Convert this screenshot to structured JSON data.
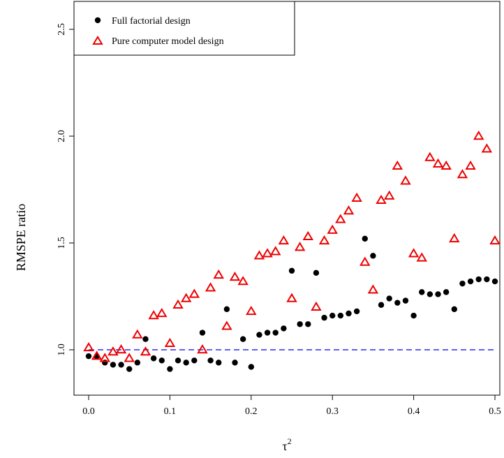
{
  "chart_data": {
    "type": "scatter",
    "xlabel_symbol": "τ",
    "xlabel_sup": "2",
    "ylabel": "RMSPE ratio",
    "xlim": [
      0.0,
      0.5
    ],
    "ylim": [
      0.8,
      2.6
    ],
    "x_ticks": [
      "0.0",
      "0.1",
      "0.2",
      "0.3",
      "0.4",
      "0.5"
    ],
    "y_ticks": [
      "1.0",
      "1.5",
      "2.0",
      "2.5"
    ],
    "reference_line": {
      "y": 1.0,
      "style": "dashed",
      "color": "#0000ee"
    },
    "legend": {
      "position": "top-left",
      "entries": [
        {
          "label": "Full factorial design",
          "marker": "filled-circle",
          "color": "#000000"
        },
        {
          "label": "Pure computer model design",
          "marker": "open-triangle",
          "color": "#ee0000"
        }
      ]
    },
    "series": [
      {
        "name": "Full factorial design",
        "marker": "filled-circle",
        "color": "#000000",
        "x": [
          0.0,
          0.01,
          0.02,
          0.03,
          0.04,
          0.05,
          0.06,
          0.07,
          0.08,
          0.09,
          0.1,
          0.11,
          0.12,
          0.13,
          0.14,
          0.15,
          0.16,
          0.17,
          0.18,
          0.19,
          0.2,
          0.21,
          0.22,
          0.23,
          0.24,
          0.25,
          0.26,
          0.27,
          0.28,
          0.29,
          0.3,
          0.31,
          0.32,
          0.33,
          0.34,
          0.35,
          0.36,
          0.37,
          0.38,
          0.39,
          0.4,
          0.41,
          0.42,
          0.43,
          0.44,
          0.45,
          0.46,
          0.47,
          0.48,
          0.49,
          0.5
        ],
        "y": [
          0.97,
          0.97,
          0.94,
          0.93,
          0.93,
          0.91,
          0.94,
          1.05,
          0.96,
          0.95,
          0.91,
          0.95,
          0.94,
          0.95,
          1.08,
          0.95,
          0.94,
          1.19,
          0.94,
          1.05,
          0.92,
          1.07,
          1.08,
          1.08,
          1.1,
          1.37,
          1.12,
          1.12,
          1.36,
          1.15,
          1.16,
          1.16,
          1.17,
          1.18,
          1.52,
          1.44,
          1.21,
          1.24,
          1.22,
          1.23,
          1.16,
          1.27,
          1.26,
          1.26,
          1.27,
          1.19,
          1.31,
          1.32,
          1.33,
          1.33,
          1.32
        ]
      },
      {
        "name": "Pure computer model design",
        "marker": "open-triangle",
        "color": "#ee0000",
        "x": [
          0.0,
          0.01,
          0.02,
          0.03,
          0.04,
          0.05,
          0.06,
          0.07,
          0.08,
          0.09,
          0.1,
          0.11,
          0.12,
          0.13,
          0.14,
          0.15,
          0.16,
          0.17,
          0.18,
          0.19,
          0.2,
          0.21,
          0.22,
          0.23,
          0.24,
          0.25,
          0.26,
          0.27,
          0.28,
          0.29,
          0.3,
          0.31,
          0.32,
          0.33,
          0.34,
          0.35,
          0.36,
          0.37,
          0.38,
          0.39,
          0.4,
          0.41,
          0.42,
          0.43,
          0.44,
          0.45,
          0.46,
          0.47,
          0.48,
          0.49,
          0.5
        ],
        "y": [
          1.01,
          0.97,
          0.96,
          0.99,
          1.0,
          0.96,
          1.07,
          0.99,
          1.16,
          1.17,
          1.03,
          1.21,
          1.24,
          1.26,
          1.0,
          1.29,
          1.35,
          1.11,
          1.34,
          1.32,
          1.18,
          1.44,
          1.45,
          1.46,
          1.51,
          1.24,
          1.48,
          1.53,
          1.2,
          1.51,
          1.56,
          1.61,
          1.65,
          1.71,
          1.41,
          1.28,
          1.7,
          1.72,
          1.86,
          1.79,
          1.45,
          1.43,
          1.9,
          1.87,
          1.86,
          1.52,
          1.82,
          1.86,
          2.0,
          1.94,
          1.51
        ]
      }
    ]
  }
}
